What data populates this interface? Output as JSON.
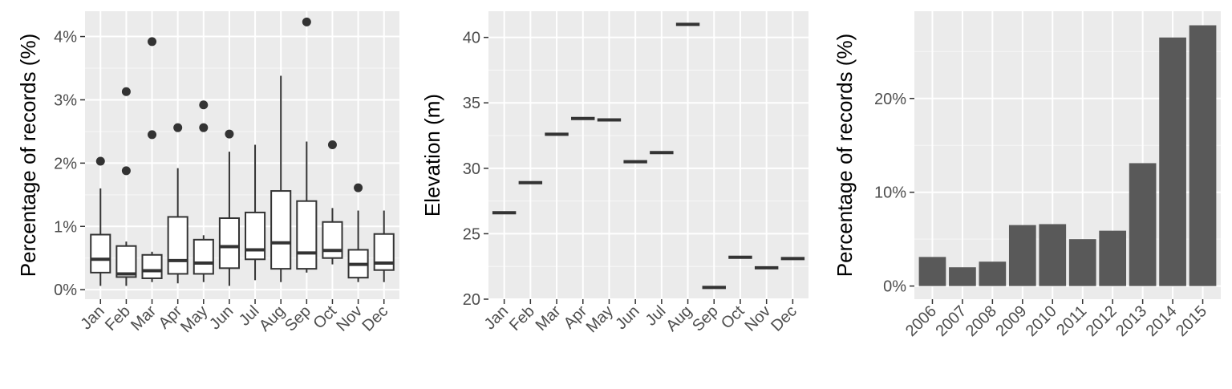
{
  "chart_data": [
    {
      "type": "box",
      "ylabel": "Percentage of records (%)",
      "xlabel": "",
      "ylim": [
        -0.15,
        4.4
      ],
      "y_ticks": [
        0,
        1,
        2,
        3,
        4
      ],
      "y_tick_labels": [
        "0%",
        "1%",
        "2%",
        "3%",
        "4%"
      ],
      "categories": [
        "Jan",
        "Feb",
        "Mar",
        "Apr",
        "May",
        "Jun",
        "Jul",
        "Aug",
        "Sep",
        "Oct",
        "Nov",
        "Dec"
      ],
      "boxes": [
        {
          "min": 0.06,
          "q1": 0.27,
          "median": 0.48,
          "q3": 0.87,
          "max": 1.6,
          "outliers": [
            2.03
          ]
        },
        {
          "min": 0.06,
          "q1": 0.2,
          "median": 0.25,
          "q3": 0.69,
          "max": 0.76,
          "outliers": [
            1.88,
            3.13
          ]
        },
        {
          "min": 0.12,
          "q1": 0.18,
          "median": 0.3,
          "q3": 0.55,
          "max": 0.6,
          "outliers": [
            2.45,
            3.92
          ]
        },
        {
          "min": 0.1,
          "q1": 0.25,
          "median": 0.46,
          "q3": 1.15,
          "max": 1.92,
          "outliers": [
            2.56
          ]
        },
        {
          "min": 0.12,
          "q1": 0.25,
          "median": 0.42,
          "q3": 0.79,
          "max": 0.86,
          "outliers": [
            2.56,
            2.92
          ]
        },
        {
          "min": 0.06,
          "q1": 0.34,
          "median": 0.68,
          "q3": 1.13,
          "max": 2.18,
          "outliers": [
            2.46
          ]
        },
        {
          "min": 0.15,
          "q1": 0.48,
          "median": 0.63,
          "q3": 1.22,
          "max": 2.29,
          "outliers": []
        },
        {
          "min": 0.12,
          "q1": 0.33,
          "median": 0.74,
          "q3": 1.56,
          "max": 3.38,
          "outliers": []
        },
        {
          "min": 0.27,
          "q1": 0.33,
          "median": 0.58,
          "q3": 1.4,
          "max": 2.34,
          "outliers": [
            4.23
          ]
        },
        {
          "min": 0.4,
          "q1": 0.5,
          "median": 0.62,
          "q3": 1.07,
          "max": 1.29,
          "outliers": [
            2.29
          ]
        },
        {
          "min": 0.12,
          "q1": 0.19,
          "median": 0.4,
          "q3": 0.63,
          "max": 1.25,
          "outliers": [
            1.61
          ]
        },
        {
          "min": 0.12,
          "q1": 0.31,
          "median": 0.42,
          "q3": 0.88,
          "max": 1.25,
          "outliers": []
        }
      ]
    },
    {
      "type": "line",
      "ylabel": "Elevation (m)",
      "xlabel": "",
      "ylim": [
        20,
        42
      ],
      "y_ticks": [
        20,
        25,
        30,
        35,
        40
      ],
      "y_tick_labels": [
        "20",
        "25",
        "30",
        "35",
        "40"
      ],
      "categories": [
        "Jan",
        "Feb",
        "Mar",
        "Apr",
        "May",
        "Jun",
        "Jul",
        "Aug",
        "Sep",
        "Oct",
        "Nov",
        "Dec"
      ],
      "values": [
        26.6,
        28.9,
        32.6,
        33.8,
        33.7,
        30.5,
        31.2,
        41.0,
        20.9,
        23.2,
        22.4,
        23.1
      ]
    },
    {
      "type": "bar",
      "ylabel": "Percentage of records (%)",
      "xlabel": "",
      "ylim": [
        -1.4,
        29.3
      ],
      "y_ticks": [
        0,
        10,
        20
      ],
      "y_tick_labels": [
        "0%",
        "10%",
        "20%"
      ],
      "categories": [
        "2006",
        "2007",
        "2008",
        "2009",
        "2010",
        "2011",
        "2012",
        "2013",
        "2014",
        "2015"
      ],
      "values": [
        3.1,
        2.0,
        2.6,
        6.5,
        6.6,
        5.0,
        5.9,
        13.1,
        26.5,
        27.8
      ]
    }
  ]
}
